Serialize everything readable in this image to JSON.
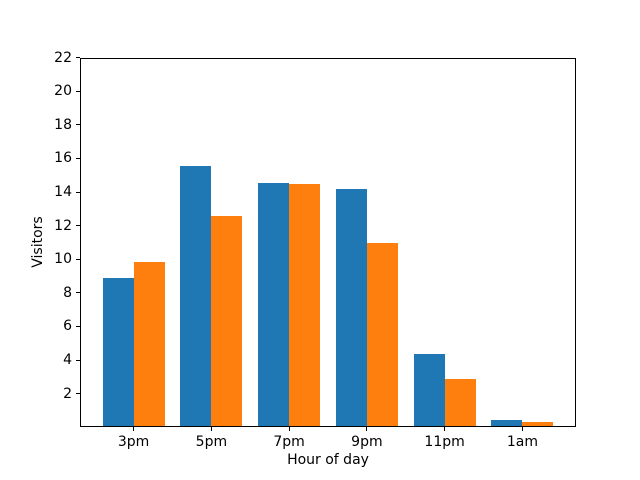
{
  "figure": {
    "background": "#ffffff"
  },
  "chart_data": {
    "type": "bar",
    "categories": [
      "3pm",
      "5pm",
      "7pm",
      "9pm",
      "11pm",
      "1am"
    ],
    "series": [
      {
        "name": "blue",
        "color": "#1f77b4",
        "values": [
          8.8,
          15.5,
          14.5,
          14.1,
          4.3,
          0.35
        ]
      },
      {
        "name": "orange",
        "color": "#ff7f0e",
        "values": [
          9.8,
          12.5,
          14.4,
          10.9,
          2.8,
          0.25
        ]
      }
    ],
    "xlabel": "Hour of day",
    "ylabel": "Visitors",
    "ylim": [
      0,
      22
    ],
    "yticks": [
      2,
      4,
      6,
      8,
      10,
      12,
      14,
      16,
      18,
      20,
      22
    ],
    "bar_width": 0.4,
    "grid": false,
    "legend_position": "none"
  }
}
